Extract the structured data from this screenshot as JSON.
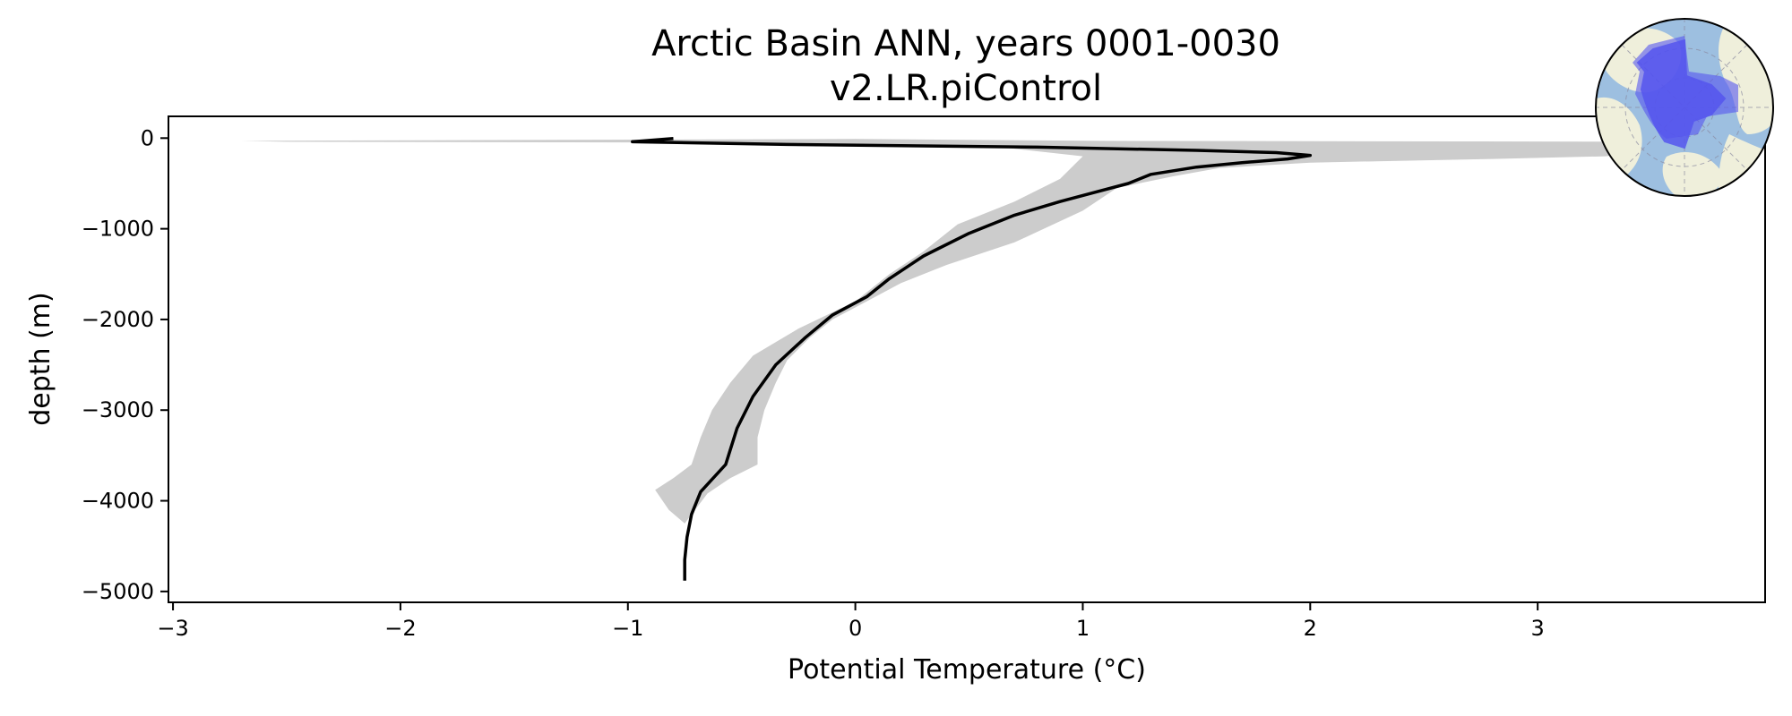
{
  "chart_data": {
    "type": "line",
    "title": "Arctic Basin ANN, years 0001-0030",
    "subtitle": "v2.LR.piControl",
    "xlabel": "Potential Temperature (°C)",
    "ylabel": "depth (m)",
    "xlim": [
      -3.02,
      4.0
    ],
    "ylim": [
      -5120,
      240
    ],
    "xticks": [
      -3,
      -2,
      -1,
      0,
      1,
      2,
      3
    ],
    "xtick_labels": [
      "−3",
      "−2",
      "−1",
      "0",
      "1",
      "2",
      "3"
    ],
    "yticks": [
      0,
      -1000,
      -2000,
      -3000,
      -4000,
      -5000
    ],
    "ytick_labels": [
      "0",
      "−1000",
      "−2000",
      "−3000",
      "−4000",
      "−5000"
    ],
    "grid": false,
    "series": [
      {
        "role": "mean",
        "color": "#000000",
        "points": [
          [
            -0.8,
            -5
          ],
          [
            -0.98,
            -40
          ],
          [
            -0.3,
            -70
          ],
          [
            0.8,
            -100
          ],
          [
            1.5,
            -135
          ],
          [
            1.85,
            -160
          ],
          [
            2.0,
            -190
          ],
          [
            1.9,
            -230
          ],
          [
            1.7,
            -270
          ],
          [
            1.5,
            -320
          ],
          [
            1.3,
            -400
          ],
          [
            1.2,
            -500
          ],
          [
            1.05,
            -600
          ],
          [
            0.9,
            -700
          ],
          [
            0.7,
            -850
          ],
          [
            0.5,
            -1050
          ],
          [
            0.3,
            -1300
          ],
          [
            0.15,
            -1550
          ],
          [
            0.05,
            -1750
          ],
          [
            -0.1,
            -1950
          ],
          [
            -0.22,
            -2200
          ],
          [
            -0.35,
            -2500
          ],
          [
            -0.45,
            -2850
          ],
          [
            -0.52,
            -3200
          ],
          [
            -0.57,
            -3600
          ],
          [
            -0.68,
            -3900
          ],
          [
            -0.72,
            -4150
          ],
          [
            -0.74,
            -4400
          ],
          [
            -0.75,
            -4650
          ],
          [
            -0.75,
            -4880
          ]
        ]
      },
      {
        "role": "range",
        "color": "#cccccc",
        "lower": [
          [
            -2.7,
            -30
          ],
          [
            -2.5,
            -40
          ],
          [
            -0.5,
            -50
          ],
          [
            0.6,
            -90
          ],
          [
            1.0,
            -200
          ],
          [
            0.9,
            -450
          ],
          [
            0.7,
            -700
          ],
          [
            0.45,
            -950
          ],
          [
            0.3,
            -1250
          ],
          [
            0.15,
            -1500
          ],
          [
            0.0,
            -1800
          ],
          [
            -0.25,
            -2100
          ],
          [
            -0.45,
            -2400
          ],
          [
            -0.55,
            -2700
          ],
          [
            -0.63,
            -3000
          ],
          [
            -0.68,
            -3300
          ],
          [
            -0.72,
            -3600
          ],
          [
            -0.8,
            -3750
          ],
          [
            -0.88,
            -3880
          ],
          [
            -0.82,
            -4100
          ],
          [
            -0.75,
            -4250
          ]
        ],
        "upper": [
          [
            -2.7,
            -30
          ],
          [
            0.0,
            -10
          ],
          [
            1.1,
            -30
          ],
          [
            3.8,
            -40
          ],
          [
            3.6,
            -100
          ],
          [
            3.3,
            -200
          ],
          [
            2.8,
            -230
          ],
          [
            2.0,
            -270
          ],
          [
            1.6,
            -330
          ],
          [
            1.4,
            -420
          ],
          [
            1.15,
            -550
          ],
          [
            1.0,
            -800
          ],
          [
            0.7,
            -1150
          ],
          [
            0.4,
            -1400
          ],
          [
            0.2,
            -1600
          ],
          [
            0.05,
            -1800
          ],
          [
            -0.1,
            -2000
          ],
          [
            -0.2,
            -2200
          ],
          [
            -0.3,
            -2450
          ],
          [
            -0.35,
            -2700
          ],
          [
            -0.4,
            -3000
          ],
          [
            -0.43,
            -3300
          ],
          [
            -0.43,
            -3600
          ],
          [
            -0.55,
            -3750
          ],
          [
            -0.65,
            -3920
          ],
          [
            -0.75,
            -4250
          ]
        ]
      }
    ],
    "inset_map": {
      "type": "polar-region-map",
      "ocean_color": "#9dbfe0",
      "land_color": "#efefdb",
      "region_color": "#5555ee"
    }
  }
}
